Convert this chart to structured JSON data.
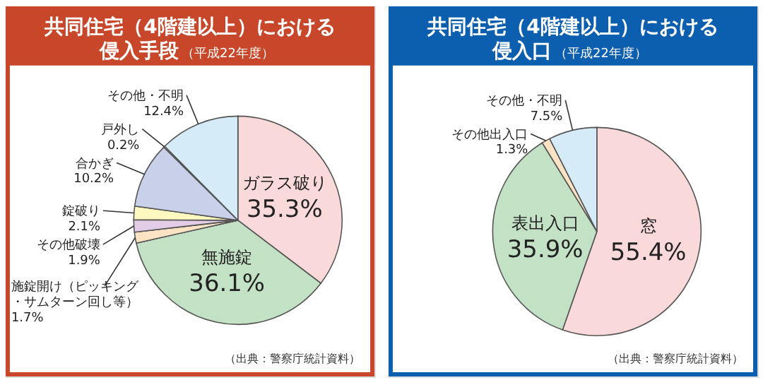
{
  "chart_data": [
    {
      "type": "pie",
      "title": "共同住宅（4階建以上）における侵入手段",
      "subtitle": "（平成22年度）",
      "categories": [
        "ガラス破り",
        "無施錠",
        "施錠開け（ピッキング・サムターン回し等）",
        "その他破壊",
        "錠破り",
        "合かぎ",
        "戸外し",
        "その他・不明"
      ],
      "values": [
        35.3,
        36.1,
        1.7,
        1.9,
        2.1,
        10.2,
        0.2,
        12.4
      ],
      "value_labels": [
        "35.3%",
        "36.1%",
        "1.7%",
        "1.9%",
        "2.1%",
        "10.2%",
        "0.2%",
        "12.4%"
      ],
      "colors": [
        "#f9d9d9",
        "#c3e1c4",
        "#fce3c4",
        "#e3cde6",
        "#fdf8c0",
        "#c9d1ea",
        "#ffffff",
        "#d6ebf8"
      ],
      "annotations": [
        "（出典：警察庁統計資料）"
      ]
    },
    {
      "type": "pie",
      "title": "共同住宅（4階建以上）における侵入口",
      "subtitle": "（平成22年度）",
      "categories": [
        "窓",
        "表出入口",
        "その他出入口",
        "その他・不明"
      ],
      "values": [
        55.4,
        35.9,
        1.3,
        7.5
      ],
      "value_labels": [
        "55.4%",
        "35.9%",
        "1.3%",
        "7.5%"
      ],
      "colors": [
        "#f9d9d9",
        "#c3e1c4",
        "#fce3c4",
        "#d6ebf8"
      ],
      "annotations": [
        "（出典：警察庁統計資料）"
      ]
    }
  ]
}
